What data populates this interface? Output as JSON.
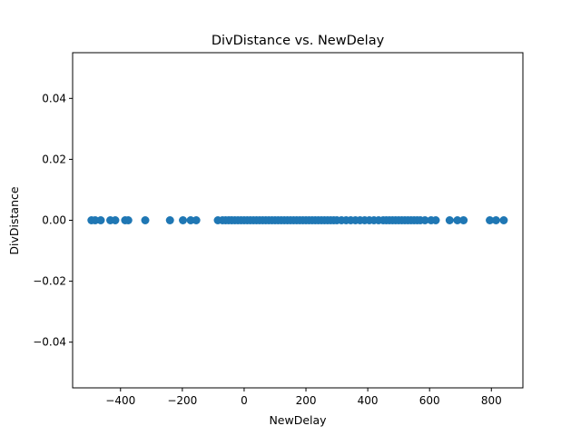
{
  "chart_data": {
    "type": "scatter",
    "title": "DivDistance vs. NewDelay",
    "xlabel": "NewDelay",
    "ylabel": "DivDistance",
    "xlim": [
      -555,
      902
    ],
    "ylim": [
      -0.055,
      0.055
    ],
    "xticks": [
      -400,
      -200,
      0,
      200,
      400,
      600,
      800
    ],
    "xtick_labels": [
      "−400",
      "−200",
      "0",
      "200",
      "400",
      "600",
      "800"
    ],
    "yticks": [
      -0.04,
      -0.02,
      0.0,
      0.02,
      0.04
    ],
    "ytick_labels": [
      "−0.04",
      "−0.02",
      "0.00",
      "0.02",
      "0.04"
    ],
    "grid": false,
    "marker_color": "#1f77b4",
    "series": [
      {
        "x": [
          -494,
          -482,
          -464,
          -433,
          -417,
          -385,
          -375,
          -320,
          -240,
          -198,
          -173,
          -155,
          -85,
          -70,
          -60,
          -50,
          -40,
          -30,
          -20,
          -10,
          0,
          10,
          20,
          30,
          40,
          50,
          60,
          70,
          80,
          90,
          100,
          110,
          120,
          130,
          140,
          150,
          160,
          170,
          180,
          190,
          200,
          210,
          220,
          230,
          240,
          250,
          260,
          270,
          280,
          290,
          300,
          315,
          330,
          345,
          360,
          375,
          390,
          405,
          420,
          435,
          450,
          460,
          470,
          480,
          490,
          500,
          510,
          520,
          530,
          540,
          550,
          560,
          570,
          585,
          605,
          620,
          665,
          690,
          710,
          795,
          815,
          840
        ],
        "y": [
          0,
          0,
          0,
          0,
          0,
          0,
          0,
          0,
          0,
          0,
          0,
          0,
          0,
          0,
          0,
          0,
          0,
          0,
          0,
          0,
          0,
          0,
          0,
          0,
          0,
          0,
          0,
          0,
          0,
          0,
          0,
          0,
          0,
          0,
          0,
          0,
          0,
          0,
          0,
          0,
          0,
          0,
          0,
          0,
          0,
          0,
          0,
          0,
          0,
          0,
          0,
          0,
          0,
          0,
          0,
          0,
          0,
          0,
          0,
          0,
          0,
          0,
          0,
          0,
          0,
          0,
          0,
          0,
          0,
          0,
          0,
          0,
          0,
          0,
          0,
          0,
          0,
          0,
          0,
          0,
          0,
          0
        ]
      }
    ]
  }
}
